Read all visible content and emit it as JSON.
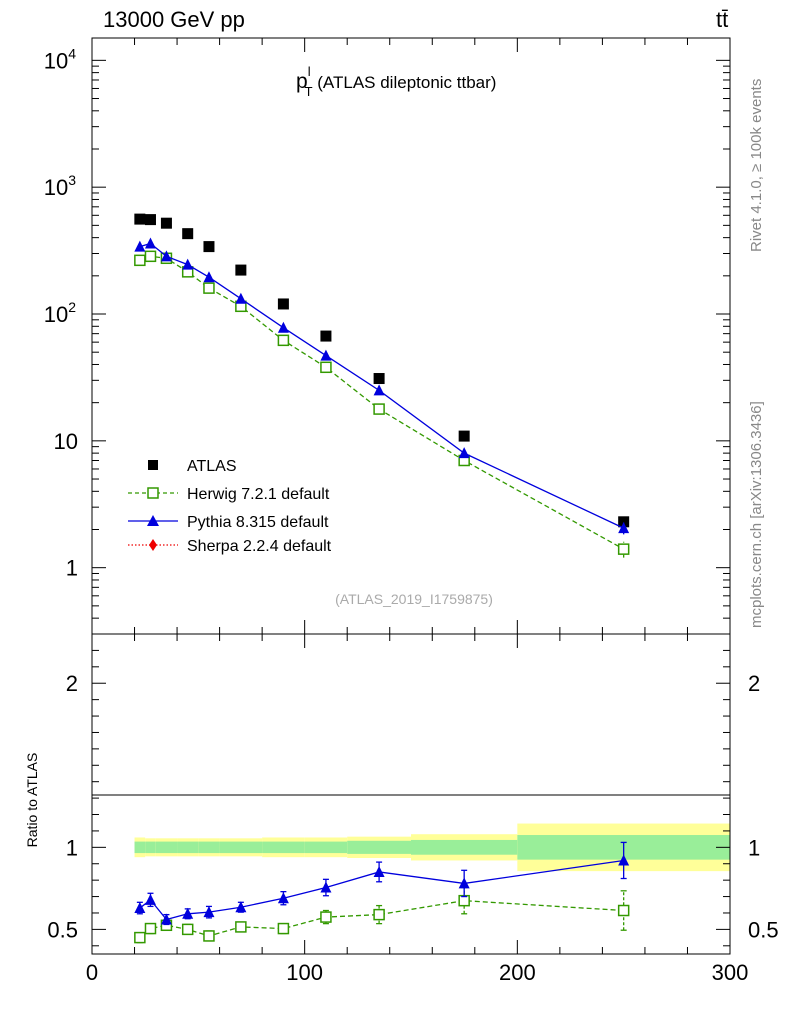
{
  "header": {
    "energy_label": "13000 GeV pp",
    "process_label": "tt̄",
    "side_rivet": "Rivet 4.1.0, ≥ 100k events",
    "side_mcplots": "mcplots.cern.ch [arXiv:1306.3436]",
    "watermark": "(ATLAS_2019_I1759875)"
  },
  "chart_data": {
    "type": "scatter",
    "title": "p_T^l (ATLAS dileptonic ttbar)",
    "title_main": "p",
    "title_sup": "l",
    "title_sub": "T",
    "title_rest": " (ATLAS dileptonic ttbar)",
    "xlabel": "",
    "xlim": [
      0,
      300
    ],
    "xticks": [
      "0",
      "100",
      "200",
      "300"
    ],
    "main_panel": {
      "yscale": "log",
      "ylim": [
        0.3,
        15000
      ],
      "yticks": [
        {
          "value": 1,
          "label": "1",
          "exp": ""
        },
        {
          "value": 10,
          "label": "10",
          "exp": ""
        },
        {
          "value": 100,
          "label": "10",
          "exp": "2"
        },
        {
          "value": 1000,
          "label": "10",
          "exp": "3"
        },
        {
          "value": 10000,
          "label": "10",
          "exp": "4"
        }
      ],
      "series": [
        {
          "name": "ATLAS",
          "marker": "square-filled",
          "color": "#000000",
          "x": [
            22.5,
            27.5,
            35,
            45,
            55,
            70,
            90,
            110,
            135,
            175,
            250
          ],
          "y": [
            560,
            555,
            520,
            430,
            340,
            222,
            120,
            67,
            31,
            10.9,
            2.3
          ]
        },
        {
          "name": "Herwig 7.2.1 default",
          "marker": "square-open",
          "color": "#339900",
          "line": "dashed",
          "x": [
            22.5,
            27.5,
            35,
            45,
            55,
            70,
            90,
            110,
            135,
            175,
            250
          ],
          "y": [
            265,
            285,
            275,
            215,
            160,
            115,
            62,
            38,
            17.8,
            7.0,
            1.4
          ],
          "yerr": [
            0,
            0,
            0,
            0,
            0,
            0,
            0,
            0,
            0,
            0,
            0.2
          ]
        },
        {
          "name": "Pythia 8.315 default",
          "marker": "triangle-filled",
          "color": "#0000dd",
          "line": "solid",
          "x": [
            22.5,
            27.5,
            35,
            45,
            55,
            70,
            90,
            110,
            135,
            175,
            250
          ],
          "y": [
            340,
            360,
            285,
            245,
            195,
            132,
            78,
            47,
            25,
            8.0,
            2.05
          ],
          "yerr": [
            0,
            0,
            0,
            0,
            0,
            0,
            0,
            0,
            0,
            0,
            0.22
          ]
        },
        {
          "name": "Sherpa 2.2.4 default",
          "marker": "diamond-filled",
          "color": "#ee0000",
          "line": "dotted",
          "x": [],
          "y": []
        }
      ]
    },
    "ratio_panel": {
      "ylabel": "Ratio to ATLAS",
      "ylim": [
        0.35,
        2.3
      ],
      "yticks": [
        "0.5",
        "1",
        "2"
      ],
      "band_edges": [
        20,
        25,
        30,
        40,
        50,
        60,
        80,
        100,
        120,
        150,
        200,
        300
      ],
      "band_inner": [
        0.035,
        0.035,
        0.035,
        0.035,
        0.035,
        0.035,
        0.035,
        0.035,
        0.04,
        0.045,
        0.075
      ],
      "band_outer": [
        0.06,
        0.055,
        0.055,
        0.055,
        0.055,
        0.055,
        0.06,
        0.06,
        0.065,
        0.08,
        0.145
      ],
      "series": [
        {
          "name": "Herwig 7.2.1 default",
          "color": "#339900",
          "x": [
            22.5,
            27.5,
            35,
            45,
            55,
            70,
            90,
            110,
            135,
            175,
            250
          ],
          "y": [
            0.45,
            0.505,
            0.525,
            0.5,
            0.46,
            0.515,
            0.505,
            0.575,
            0.59,
            0.675,
            0.615
          ],
          "yerr": [
            0.03,
            0.03,
            0.025,
            0.03,
            0.03,
            0.025,
            0.03,
            0.04,
            0.055,
            0.08,
            0.12
          ]
        },
        {
          "name": "Pythia 8.315 default",
          "color": "#0000dd",
          "x": [
            22.5,
            27.5,
            35,
            45,
            55,
            70,
            90,
            110,
            135,
            175,
            250
          ],
          "y": [
            0.63,
            0.68,
            0.56,
            0.595,
            0.605,
            0.635,
            0.69,
            0.755,
            0.85,
            0.78,
            0.92
          ],
          "yerr": [
            0.035,
            0.04,
            0.03,
            0.03,
            0.035,
            0.03,
            0.04,
            0.05,
            0.06,
            0.08,
            0.11
          ]
        }
      ]
    }
  }
}
